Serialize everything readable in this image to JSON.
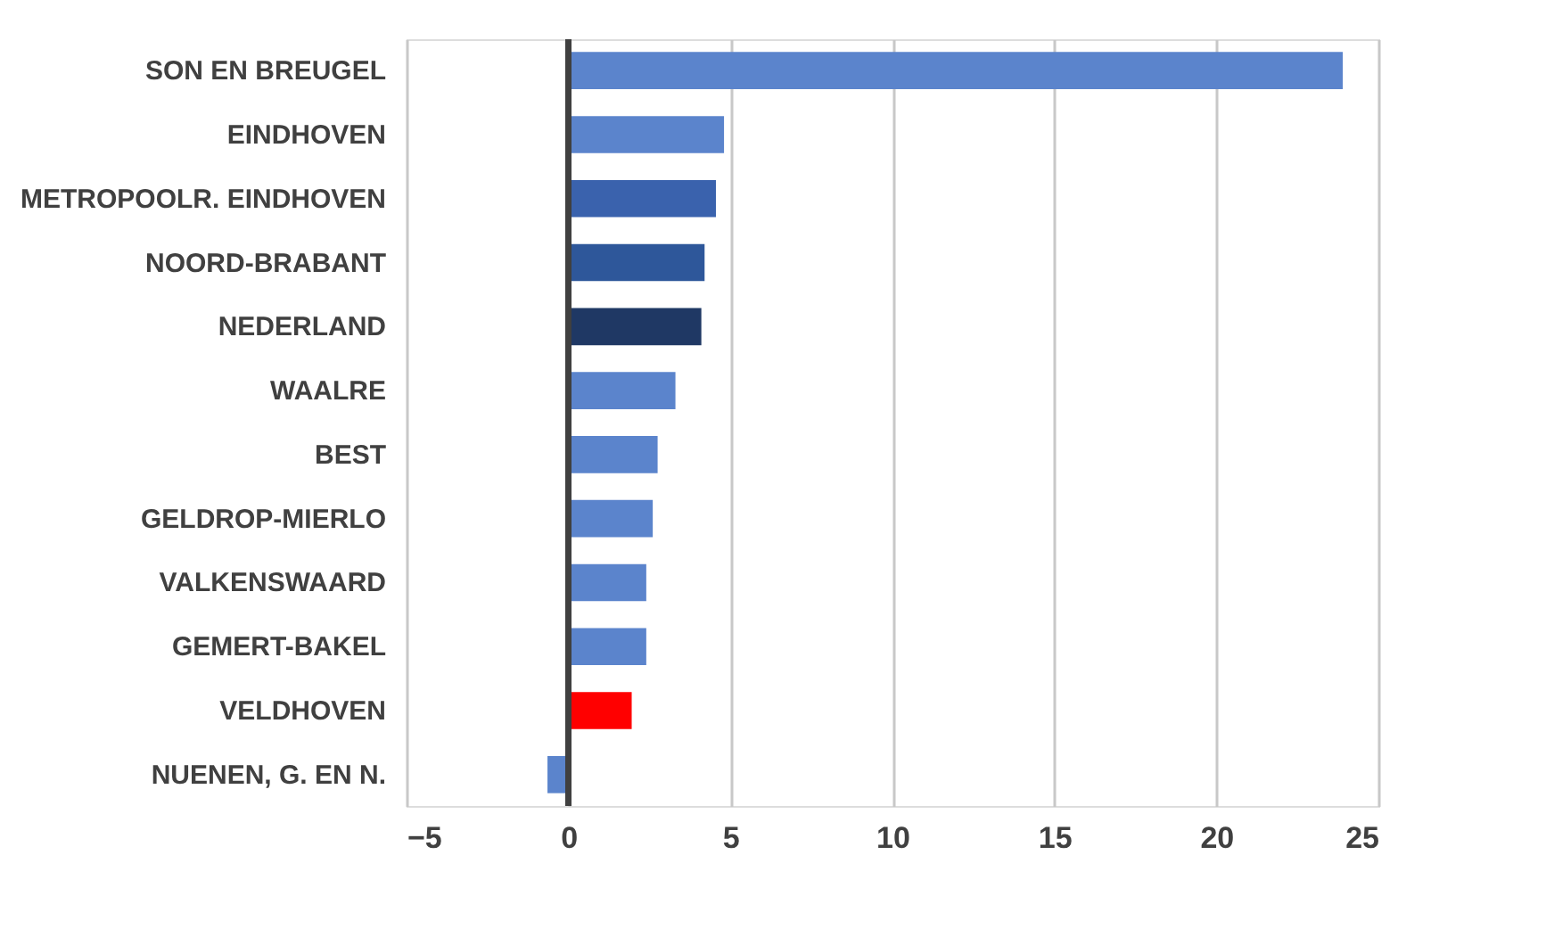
{
  "chart_data": {
    "type": "bar",
    "orientation": "horizontal",
    "categories": [
      "SON EN BREUGEL",
      "EINDHOVEN",
      "METROPOOLR. EINDHOVEN",
      "NOORD-BRABANT",
      "NEDERLAND",
      "WAALRE",
      "BEST",
      "GELDROP-MIERLO",
      "VALKENSWAARD",
      "GEMERT-BAKEL",
      "VELDHOVEN",
      "NUENEN, G. EN N."
    ],
    "values": [
      23.9,
      4.8,
      4.55,
      4.2,
      4.1,
      3.3,
      2.75,
      2.6,
      2.4,
      2.4,
      1.95,
      -0.65
    ],
    "colors": [
      "#5b84cc",
      "#5b84cc",
      "#3a62ad",
      "#2e579a",
      "#1f3864",
      "#5b84cc",
      "#5b84cc",
      "#5b84cc",
      "#5b84cc",
      "#5b84cc",
      "#ff0000",
      "#5b84cc"
    ],
    "xlim": [
      -5,
      25
    ],
    "xticks": [
      -5,
      0,
      5,
      10,
      15,
      20,
      25
    ],
    "grid": "x"
  }
}
